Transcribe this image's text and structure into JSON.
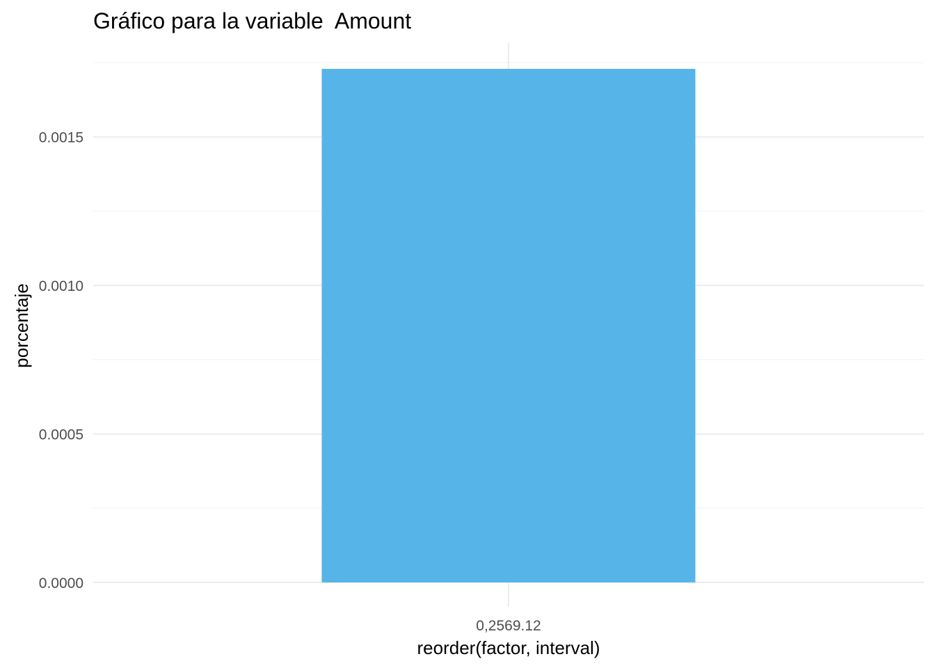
{
  "chart_data": {
    "type": "bar",
    "title": "Gráfico para la variable  Amount",
    "xlabel": "reorder(factor, interval)",
    "ylabel": "porcentaje",
    "categories": [
      "0,2569.12"
    ],
    "values": [
      0.001729
    ],
    "ylim": [
      0,
      0.00175
    ],
    "yticks": [
      0.0,
      0.0005,
      0.001,
      0.0015
    ],
    "ytick_labels": [
      "0.0000",
      "0.0005",
      "0.0010",
      "0.0015"
    ],
    "grid": true,
    "legend": "none",
    "colors": {
      "bar": "#56B4E9",
      "grid_major": "#ebebeb",
      "grid_minor": "#f4f4f4"
    }
  }
}
